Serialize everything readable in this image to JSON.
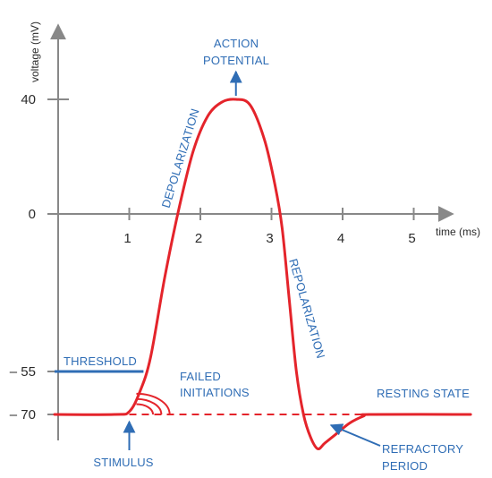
{
  "chart_data": {
    "type": "line",
    "title": "",
    "xlabel": "time (ms)",
    "ylabel": "voltage (mV)",
    "xlim": [
      -0.05,
      5.8
    ],
    "ylim": [
      -85,
      55
    ],
    "x_ticks": [
      1,
      2,
      3,
      4,
      5
    ],
    "y_ticks": [
      40,
      0,
      -55,
      -70
    ],
    "x_tick_labels": [
      "1",
      "2",
      "3",
      "4",
      "5"
    ],
    "y_tick_labels": [
      "40",
      "0",
      "– 55",
      "– 70"
    ],
    "threshold_mv": -55,
    "resting_mv": -70,
    "series": [
      {
        "color": "#e4242b",
        "x": [
          -0.05,
          0.8,
          1.0,
          1.15,
          1.3,
          1.5,
          1.7,
          1.9,
          2.1,
          2.3,
          2.5,
          2.7,
          2.9,
          3.05,
          3.15,
          3.25,
          3.35,
          3.45,
          3.55,
          3.65,
          3.75,
          3.9,
          4.1,
          4.3,
          4.4,
          5.8
        ],
        "values": [
          -70,
          -70,
          -69,
          -62,
          -50,
          -22,
          2,
          22,
          34,
          39,
          40,
          38,
          26,
          10,
          -5,
          -30,
          -55,
          -70,
          -78,
          -82,
          -80,
          -77,
          -73,
          -70.5,
          -70,
          -70
        ]
      }
    ],
    "resting_dashed": {
      "x_start": 1.0,
      "x_end": 4.4,
      "y": -70
    },
    "threshold_line": {
      "x_start": -0.05,
      "x_end": 1.2,
      "y": -55
    },
    "failed_initiations": {
      "center_x": 1.1,
      "radii_ms": [
        0.3,
        0.45,
        0.6
      ],
      "y": -70
    },
    "annotations": [
      {
        "text": "ACTION",
        "color": "#2f6db5"
      },
      {
        "text": "POTENTIAL",
        "color": "#2f6db5"
      },
      {
        "text": "DEPOLARIZATION",
        "color": "#2f6db5"
      },
      {
        "text": "REPOLARIZATION",
        "color": "#2f6db5"
      },
      {
        "text": "THRESHOLD",
        "color": "#2f6db5"
      },
      {
        "text": "FAILED",
        "color": "#2f6db5"
      },
      {
        "text": "INITIATIONS",
        "color": "#2f6db5"
      },
      {
        "text": "RESTING STATE",
        "color": "#2f6db5"
      },
      {
        "text": "STIMULUS",
        "color": "#2f6db5"
      },
      {
        "text": "REFRACTORY",
        "color": "#2f6db5"
      },
      {
        "text": "PERIOD",
        "color": "#2f6db5"
      }
    ],
    "colors": {
      "curve": "#e4242b",
      "annotation": "#2f6db5",
      "axis": "#888888"
    }
  }
}
